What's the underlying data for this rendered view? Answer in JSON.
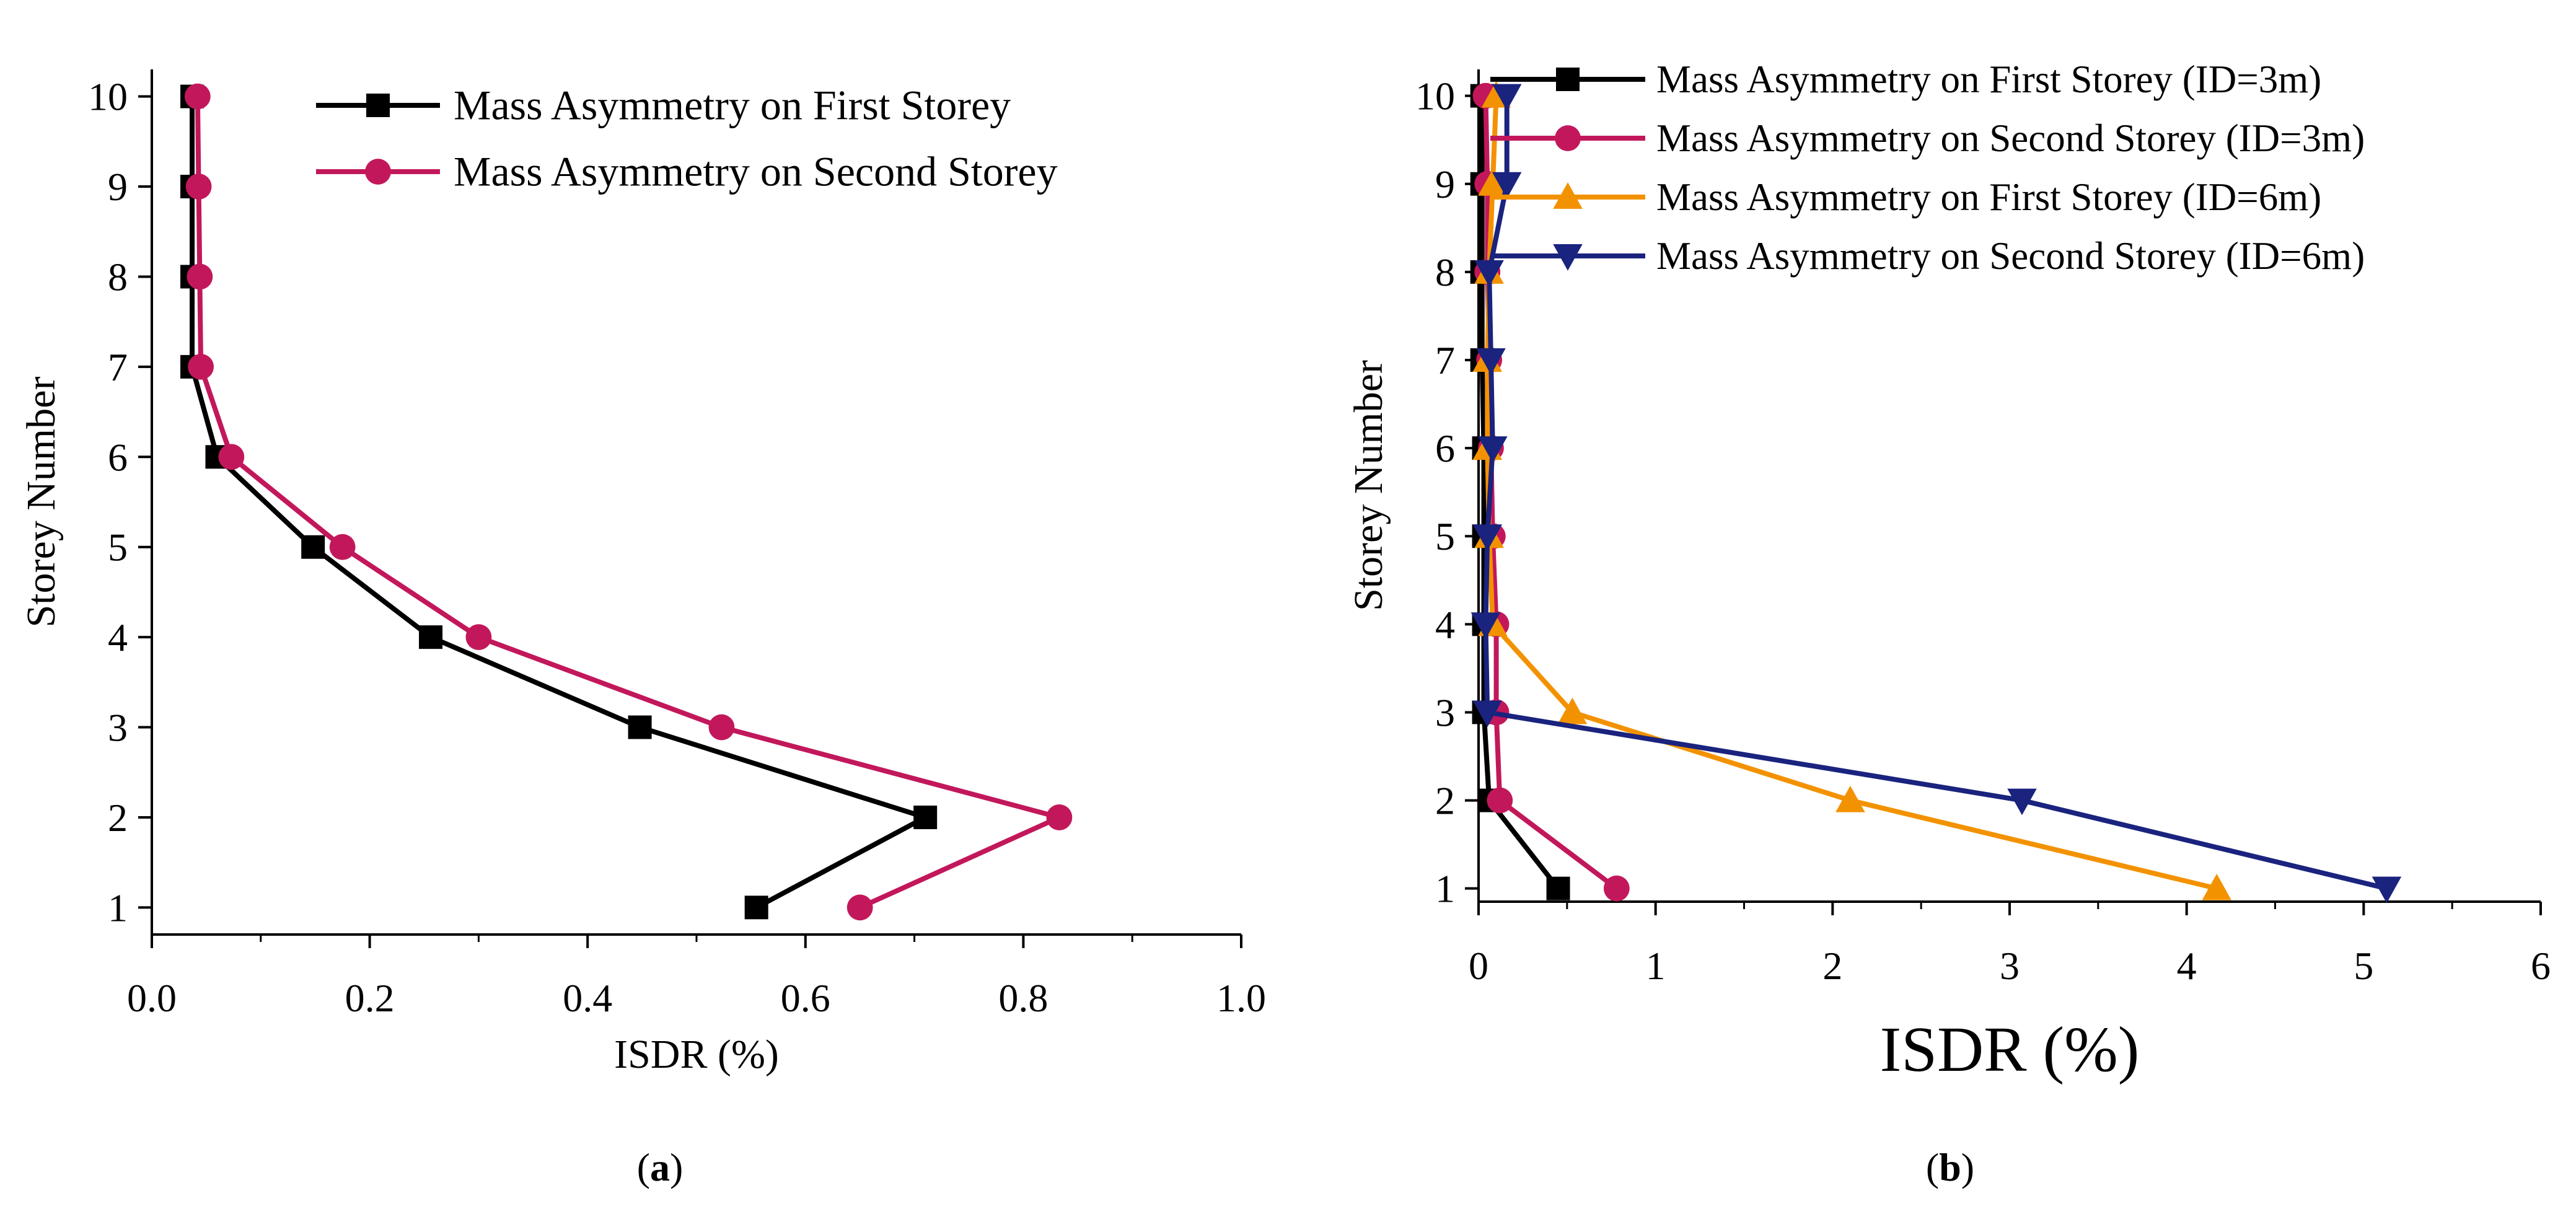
{
  "chart_data": [
    {
      "panel": "a",
      "type": "line",
      "caption": "(a)",
      "caption_letter": "a",
      "xlabel": "ISDR (%)",
      "ylabel": "Storey Number",
      "xlim": [
        0.0,
        1.0
      ],
      "ylim": [
        1,
        10
      ],
      "xticks": [
        0.0,
        0.2,
        0.4,
        0.6,
        0.8,
        1.0
      ],
      "xtick_labels": [
        "0.0",
        "0.2",
        "0.4",
        "0.6",
        "0.8",
        "1.0"
      ],
      "yticks": [
        1,
        2,
        3,
        4,
        5,
        6,
        7,
        8,
        9,
        10
      ],
      "ytick_labels": [
        "1",
        "2",
        "3",
        "4",
        "5",
        "6",
        "7",
        "8",
        "9",
        "10"
      ],
      "grid": false,
      "legend_position": "top-right",
      "series": [
        {
          "name": "Mass Asymmetry on First Storey",
          "color": "#000000",
          "marker": "square",
          "points": [
            {
              "x": 0.555,
              "y": 1
            },
            {
              "x": 0.71,
              "y": 2
            },
            {
              "x": 0.448,
              "y": 3
            },
            {
              "x": 0.256,
              "y": 4
            },
            {
              "x": 0.148,
              "y": 5
            },
            {
              "x": 0.06,
              "y": 6
            },
            {
              "x": 0.037,
              "y": 7
            },
            {
              "x": 0.037,
              "y": 8
            },
            {
              "x": 0.037,
              "y": 9
            },
            {
              "x": 0.037,
              "y": 10
            }
          ]
        },
        {
          "name": "Mass Asymmetry on Second Storey",
          "color": "#c2185b",
          "marker": "circle",
          "points": [
            {
              "x": 0.65,
              "y": 1
            },
            {
              "x": 0.833,
              "y": 2
            },
            {
              "x": 0.523,
              "y": 3
            },
            {
              "x": 0.3,
              "y": 4
            },
            {
              "x": 0.175,
              "y": 5
            },
            {
              "x": 0.073,
              "y": 6
            },
            {
              "x": 0.045,
              "y": 7
            },
            {
              "x": 0.044,
              "y": 8
            },
            {
              "x": 0.043,
              "y": 9
            },
            {
              "x": 0.042,
              "y": 10
            }
          ]
        }
      ]
    },
    {
      "panel": "b",
      "type": "line",
      "caption": "(b)",
      "caption_letter": "b",
      "xlabel": "ISDR (%)",
      "ylabel": "Storey Number",
      "xlim": [
        0,
        6
      ],
      "ylim": [
        1,
        10
      ],
      "xticks": [
        0,
        1,
        2,
        3,
        4,
        5,
        6
      ],
      "xtick_labels": [
        "0",
        "1",
        "2",
        "3",
        "4",
        "5",
        "6"
      ],
      "yticks": [
        1,
        2,
        3,
        4,
        5,
        6,
        7,
        8,
        9,
        10
      ],
      "ytick_labels": [
        "1",
        "2",
        "3",
        "4",
        "5",
        "6",
        "7",
        "8",
        "9",
        "10"
      ],
      "grid": false,
      "legend_position": "top-right",
      "series": [
        {
          "name": "Mass Asymmetry on First Storey (ID=3m)",
          "color": "#000000",
          "marker": "square",
          "points": [
            {
              "x": 0.45,
              "y": 1
            },
            {
              "x": 0.06,
              "y": 2
            },
            {
              "x": 0.03,
              "y": 3
            },
            {
              "x": 0.03,
              "y": 4
            },
            {
              "x": 0.03,
              "y": 5
            },
            {
              "x": 0.03,
              "y": 6
            },
            {
              "x": 0.02,
              "y": 7
            },
            {
              "x": 0.02,
              "y": 8
            },
            {
              "x": 0.02,
              "y": 9
            },
            {
              "x": 0.02,
              "y": 10
            }
          ]
        },
        {
          "name": "Mass Asymmetry on Second Storey (ID=3m)",
          "color": "#c2185b",
          "marker": "circle",
          "points": [
            {
              "x": 0.78,
              "y": 1
            },
            {
              "x": 0.12,
              "y": 2
            },
            {
              "x": 0.1,
              "y": 3
            },
            {
              "x": 0.1,
              "y": 4
            },
            {
              "x": 0.08,
              "y": 5
            },
            {
              "x": 0.07,
              "y": 6
            },
            {
              "x": 0.06,
              "y": 7
            },
            {
              "x": 0.05,
              "y": 8
            },
            {
              "x": 0.05,
              "y": 9
            },
            {
              "x": 0.04,
              "y": 10
            }
          ]
        },
        {
          "name": "Mass Asymmetry on First Storey (ID=6m)",
          "color": "#f39200",
          "marker": "triangle-up",
          "points": [
            {
              "x": 4.17,
              "y": 1
            },
            {
              "x": 2.1,
              "y": 2
            },
            {
              "x": 0.53,
              "y": 3
            },
            {
              "x": 0.08,
              "y": 4
            },
            {
              "x": 0.06,
              "y": 5
            },
            {
              "x": 0.05,
              "y": 6
            },
            {
              "x": 0.05,
              "y": 7
            },
            {
              "x": 0.06,
              "y": 8
            },
            {
              "x": 0.08,
              "y": 9
            },
            {
              "x": 0.1,
              "y": 10
            }
          ]
        },
        {
          "name": "Mass Asymmetry on Second Storey (ID=6m)",
          "color": "#1a237e",
          "marker": "triangle-down",
          "points": [
            {
              "x": 5.13,
              "y": 1
            },
            {
              "x": 3.07,
              "y": 2
            },
            {
              "x": 0.05,
              "y": 3
            },
            {
              "x": 0.04,
              "y": 4
            },
            {
              "x": 0.05,
              "y": 5
            },
            {
              "x": 0.08,
              "y": 6
            },
            {
              "x": 0.07,
              "y": 7
            },
            {
              "x": 0.06,
              "y": 8
            },
            {
              "x": 0.16,
              "y": 9
            },
            {
              "x": 0.16,
              "y": 10
            }
          ]
        }
      ]
    }
  ]
}
